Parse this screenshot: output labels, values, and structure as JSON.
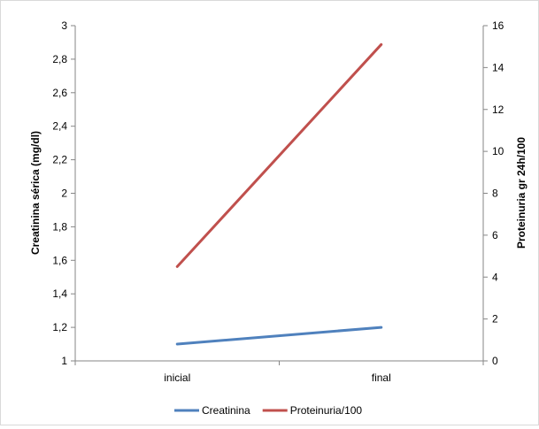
{
  "chart_data": {
    "type": "line",
    "categories": [
      "inicial",
      "final"
    ],
    "series": [
      {
        "name": "Creatinina",
        "axis": "left",
        "color": "#4F81BD",
        "values": [
          1.1,
          1.2
        ]
      },
      {
        "name": "Proteinuria/100",
        "axis": "right",
        "color": "#C0504D",
        "values": [
          4.5,
          15.1
        ]
      }
    ],
    "y_left": {
      "label": "Creatinina sérica  (mg/dl)",
      "range": [
        1,
        3
      ],
      "ticks": [
        "1",
        "1,2",
        "1,4",
        "1,6",
        "1,8",
        "2",
        "2,2",
        "2,4",
        "2,6",
        "2,8",
        "3"
      ]
    },
    "y_right": {
      "label": "Proteinuria gr 24h/100",
      "range": [
        0,
        16
      ],
      "ticks": [
        "0",
        "2",
        "4",
        "6",
        "8",
        "10",
        "12",
        "14",
        "16"
      ]
    },
    "grid": false,
    "legend_position": "bottom"
  }
}
